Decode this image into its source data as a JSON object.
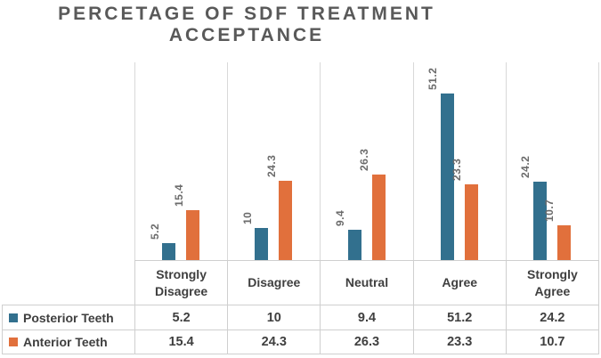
{
  "header": {
    "title_line1": "PERCETAGE OF SDF TREATMENT",
    "title_line2": "ACCEPTANCE"
  },
  "colors": {
    "posterior": "#32708E",
    "anterior": "#E1703C",
    "gridline": "#D9D9D9",
    "table_border": "#CFCFCF",
    "title_text": "#595959",
    "data_label_text": "#6B6B6B",
    "table_text": "#3F3F3F"
  },
  "chart_data": {
    "type": "bar",
    "title": "PERCETAGE OF SDF TREATMENT ACCEPTANCE",
    "categories": [
      "Strongly Disagree",
      "Disagree",
      "Neutral",
      "Agree",
      "Strongly Agree"
    ],
    "series": [
      {
        "name": "Posterior Teeth",
        "color_key": "posterior",
        "values": [
          5.2,
          10,
          9.4,
          51.2,
          24.2
        ]
      },
      {
        "name": "Anterior Teeth",
        "color_key": "anterior",
        "values": [
          15.4,
          24.3,
          26.3,
          23.3,
          10.7
        ]
      }
    ],
    "value_axis": {
      "min": 0,
      "max": 60,
      "visible": false
    },
    "gridlines": "vertical-category-separators-only",
    "data_labels": {
      "rotation": -90,
      "position": "above-bar"
    },
    "legend": "shown-as-table-left-column",
    "xlabel": "",
    "ylabel": ""
  }
}
